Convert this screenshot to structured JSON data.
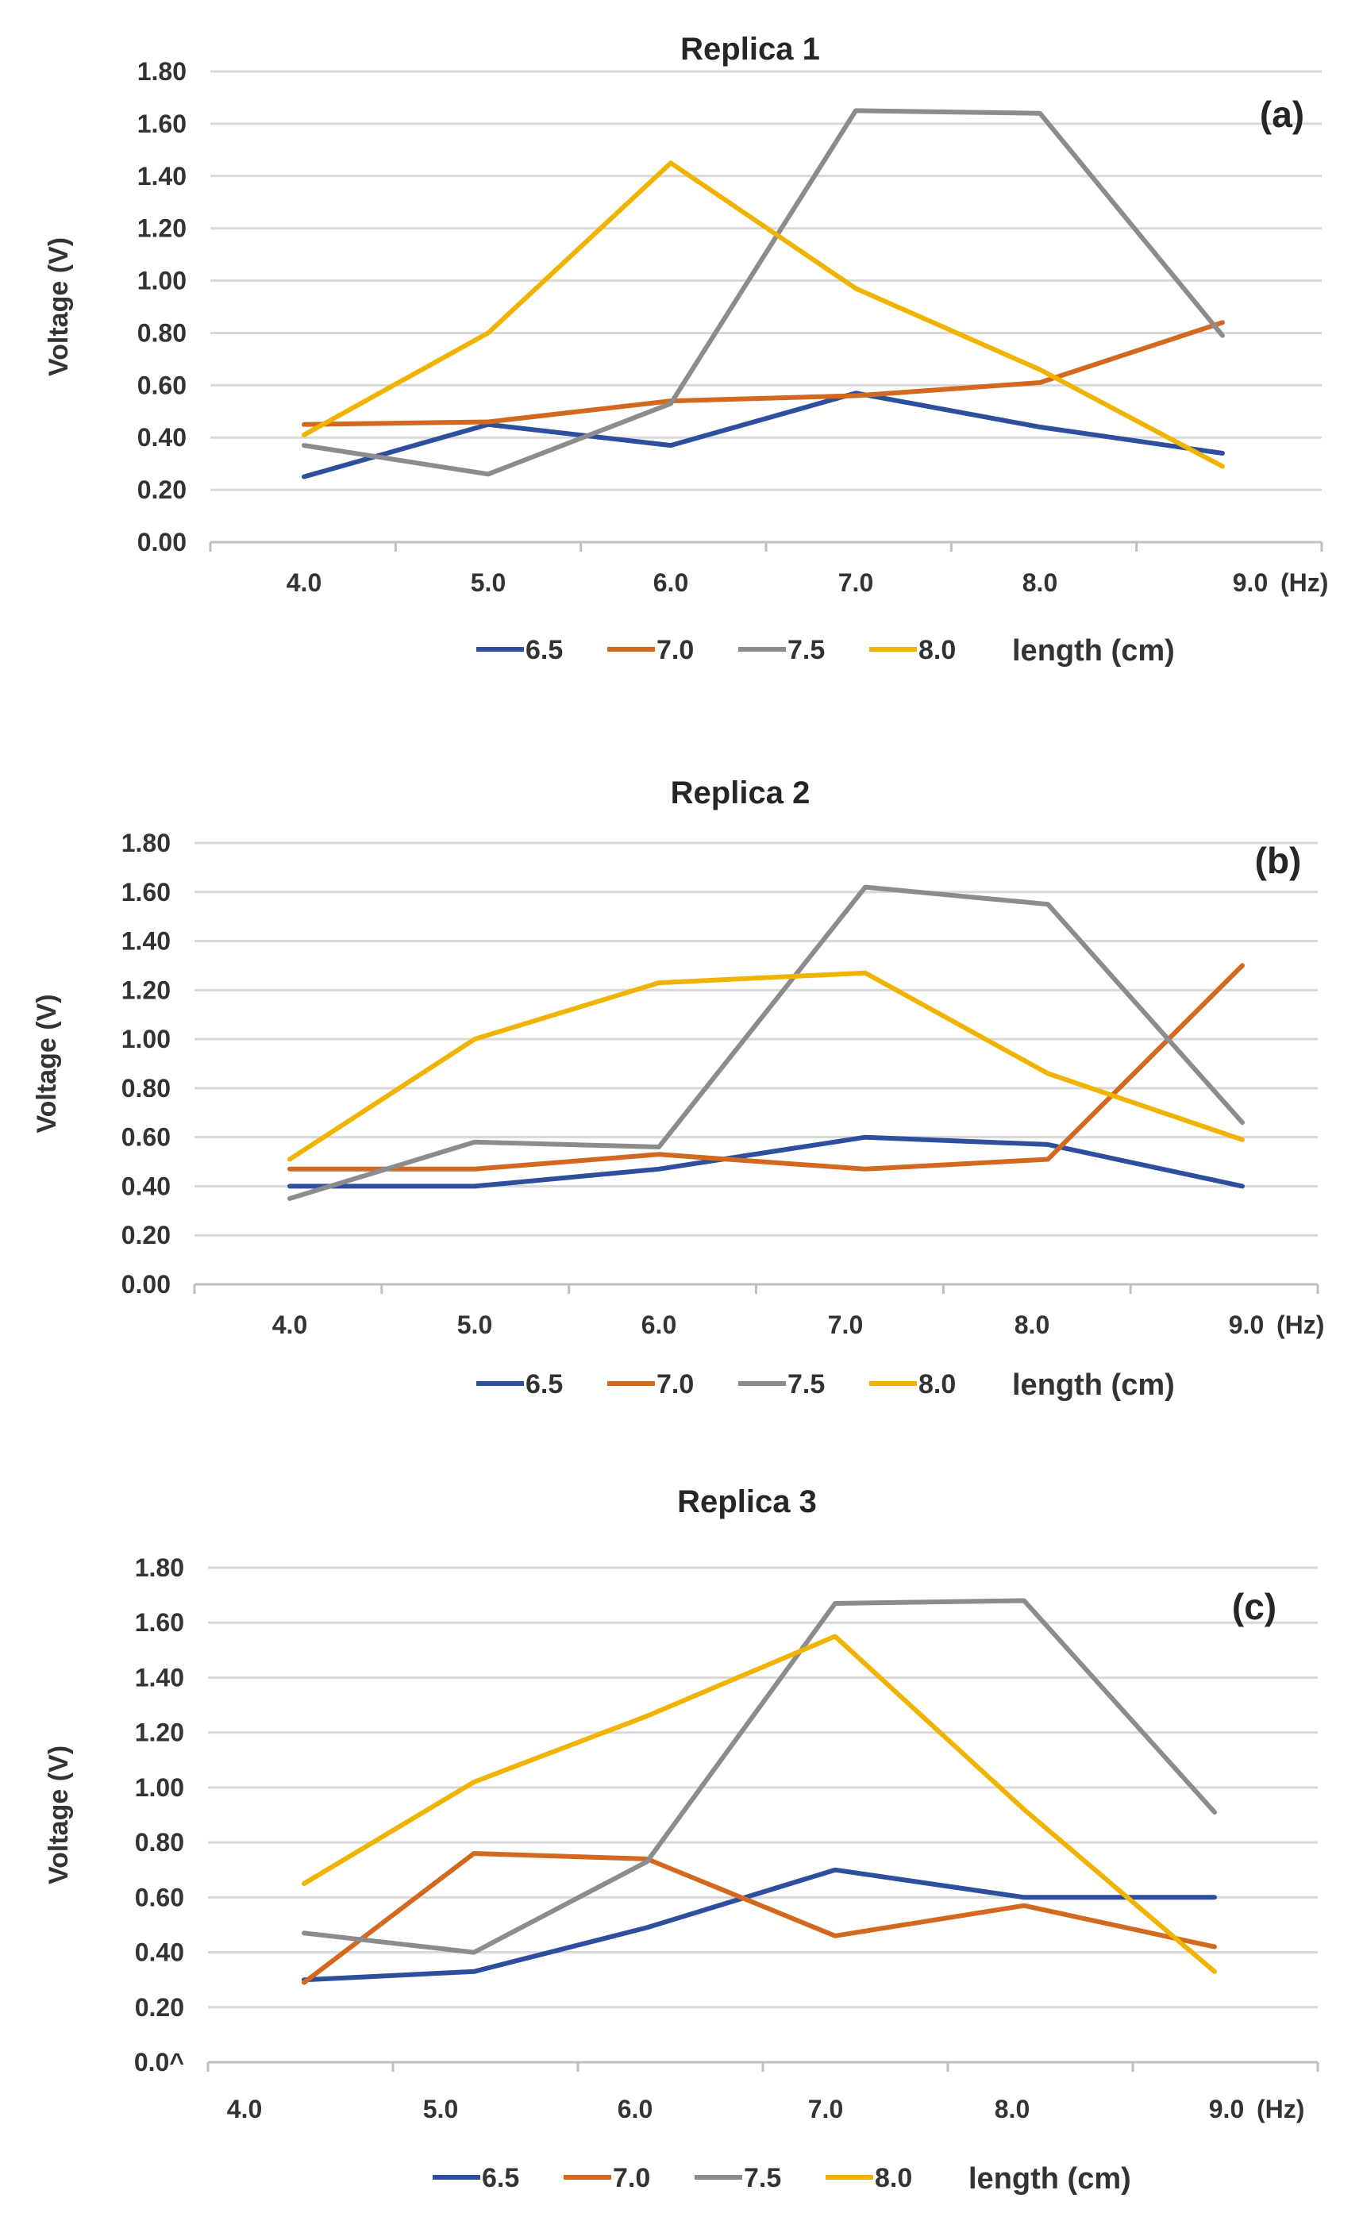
{
  "chart_data": [
    {
      "type": "line",
      "title": "Replica 1",
      "panel_label": "(a)",
      "ylabel": "Voltage (V)",
      "x_unit": "(Hz)",
      "legend_title": "length (cm)",
      "legend_position": "bottom",
      "grid": true,
      "ylim": [
        0,
        1.8
      ],
      "y_ticks": [
        "0.00",
        "0.20",
        "0.40",
        "0.60",
        "0.80",
        "1.00",
        "1.20",
        "1.40",
        "1.60",
        "1.80"
      ],
      "categories": [
        "4.0",
        "5.0",
        "6.0",
        "7.0",
        "8.0",
        "9.0"
      ],
      "series": [
        {
          "name": "6.5",
          "color": "#2e4f9e",
          "values": [
            0.25,
            0.45,
            0.37,
            0.57,
            0.44,
            0.34
          ]
        },
        {
          "name": "7.0",
          "color": "#d2691e",
          "values": [
            0.45,
            0.46,
            0.54,
            0.56,
            0.61,
            0.84
          ]
        },
        {
          "name": "7.5",
          "color": "#8c8c8c",
          "values": [
            0.37,
            0.26,
            0.53,
            1.65,
            1.64,
            0.79
          ]
        },
        {
          "name": "8.0",
          "color": "#f0b400",
          "values": [
            0.41,
            0.8,
            1.45,
            0.97,
            0.66,
            0.29
          ]
        }
      ]
    },
    {
      "type": "line",
      "title": "Replica 2",
      "panel_label": "(b)",
      "ylabel": "Voltage (V)",
      "x_unit": "(Hz)",
      "legend_title": "length (cm)",
      "legend_position": "bottom",
      "grid": true,
      "ylim": [
        0,
        1.8
      ],
      "y_ticks": [
        "0.00",
        "0.20",
        "0.40",
        "0.60",
        "0.80",
        "1.00",
        "1.20",
        "1.40",
        "1.60",
        "1.80"
      ],
      "categories": [
        "4.0",
        "5.0",
        "6.0",
        "7.0",
        "8.0",
        "9.0"
      ],
      "series": [
        {
          "name": "6.5",
          "color": "#2e4f9e",
          "values": [
            0.4,
            0.4,
            0.47,
            0.6,
            0.57,
            0.4
          ]
        },
        {
          "name": "7.0",
          "color": "#d2691e",
          "values": [
            0.47,
            0.47,
            0.53,
            0.47,
            0.51,
            1.3
          ]
        },
        {
          "name": "7.5",
          "color": "#8c8c8c",
          "values": [
            0.35,
            0.58,
            0.56,
            1.62,
            1.55,
            0.66
          ]
        },
        {
          "name": "8.0",
          "color": "#f0b400",
          "values": [
            0.51,
            1.0,
            1.23,
            1.27,
            0.86,
            0.59
          ]
        }
      ]
    },
    {
      "type": "line",
      "title": "Replica 3",
      "panel_label": "(c)",
      "ylabel": "Voltage (V)",
      "x_unit": "(Hz)",
      "legend_title": "length (cm)",
      "legend_position": "bottom",
      "grid": true,
      "ylim": [
        0,
        1.8
      ],
      "y_ticks": [
        "0.0^",
        "0.20",
        "0.40",
        "0.60",
        "0.80",
        "1.00",
        "1.20",
        "1.40",
        "1.60",
        "1.80"
      ],
      "categories": [
        "4.0",
        "5.0",
        "6.0",
        "7.0",
        "8.0",
        "9.0"
      ],
      "series": [
        {
          "name": "6.5",
          "color": "#2e4f9e",
          "values": [
            0.3,
            0.33,
            0.49,
            0.7,
            0.6,
            0.6
          ]
        },
        {
          "name": "7.0",
          "color": "#d2691e",
          "values": [
            0.29,
            0.76,
            0.74,
            0.46,
            0.57,
            0.42
          ]
        },
        {
          "name": "7.5",
          "color": "#8c8c8c",
          "values": [
            0.47,
            0.4,
            0.73,
            1.67,
            1.68,
            0.91
          ]
        },
        {
          "name": "8.0",
          "color": "#f0b400",
          "values": [
            0.65,
            1.02,
            1.26,
            1.55,
            0.92,
            0.33
          ]
        }
      ]
    }
  ]
}
